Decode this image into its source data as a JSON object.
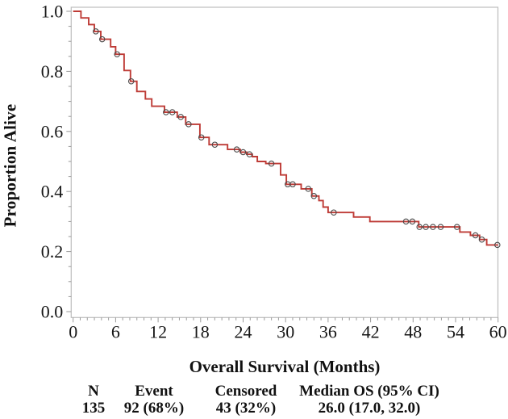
{
  "figure": {
    "background": "#ffffff"
  },
  "chart_data": {
    "type": "line",
    "variant": "kaplan_meier_step_curve",
    "title": "",
    "xlabel": "Overall Survival (Months)",
    "ylabel": "Proportion Alive",
    "xlim": [
      0,
      60
    ],
    "ylim": [
      0.0,
      1.0
    ],
    "x_major_ticks": [
      0,
      6,
      12,
      18,
      24,
      30,
      36,
      42,
      48,
      54,
      60
    ],
    "x_minor_tick_step": 1,
    "y_major_ticks": [
      0.0,
      0.2,
      0.4,
      0.6,
      0.8,
      1.0
    ],
    "y_minor_tick_step": 0.05,
    "grid": "off",
    "legend": "none",
    "frame": "box",
    "line_color": "#be3b36",
    "censor_marker": "open_circle",
    "censor_color": "#4a4a4a",
    "series": [
      {
        "name": "Overall Survival",
        "draw": "step_post",
        "points": [
          [
            0.0,
            1.0
          ],
          [
            1.1,
            0.978
          ],
          [
            2.2,
            0.956
          ],
          [
            3.0,
            0.933
          ],
          [
            3.9,
            0.907
          ],
          [
            5.3,
            0.882
          ],
          [
            6.0,
            0.857
          ],
          [
            7.2,
            0.803
          ],
          [
            8.1,
            0.767
          ],
          [
            9.0,
            0.733
          ],
          [
            10.2,
            0.708
          ],
          [
            11.1,
            0.684
          ],
          [
            12.9,
            0.664
          ],
          [
            14.7,
            0.648
          ],
          [
            15.9,
            0.624
          ],
          [
            17.9,
            0.58
          ],
          [
            19.2,
            0.556
          ],
          [
            21.8,
            0.54
          ],
          [
            23.6,
            0.531
          ],
          [
            24.5,
            0.524
          ],
          [
            25.3,
            0.516
          ],
          [
            26.0,
            0.5
          ],
          [
            27.2,
            0.493
          ],
          [
            29.3,
            0.455
          ],
          [
            30.1,
            0.424
          ],
          [
            32.2,
            0.409
          ],
          [
            33.7,
            0.385
          ],
          [
            34.7,
            0.37
          ],
          [
            35.3,
            0.348
          ],
          [
            36.0,
            0.33
          ],
          [
            39.6,
            0.315
          ],
          [
            41.9,
            0.3
          ],
          [
            48.8,
            0.282
          ],
          [
            54.6,
            0.265
          ],
          [
            56.1,
            0.254
          ],
          [
            57.4,
            0.24
          ],
          [
            58.4,
            0.222
          ],
          [
            60.0,
            0.222
          ]
        ]
      }
    ],
    "censored_points": [
      [
        3.2,
        0.933
      ],
      [
        4.1,
        0.907
      ],
      [
        6.2,
        0.857
      ],
      [
        8.2,
        0.767
      ],
      [
        13.1,
        0.664
      ],
      [
        14.0,
        0.664
      ],
      [
        15.2,
        0.648
      ],
      [
        16.3,
        0.624
      ],
      [
        18.1,
        0.58
      ],
      [
        20.0,
        0.556
      ],
      [
        23.1,
        0.54
      ],
      [
        24.0,
        0.531
      ],
      [
        24.9,
        0.524
      ],
      [
        28.0,
        0.493
      ],
      [
        30.3,
        0.424
      ],
      [
        31.0,
        0.424
      ],
      [
        33.2,
        0.409
      ],
      [
        34.0,
        0.385
      ],
      [
        36.8,
        0.33
      ],
      [
        47.0,
        0.3
      ],
      [
        47.9,
        0.3
      ],
      [
        48.9,
        0.282
      ],
      [
        49.8,
        0.282
      ],
      [
        50.8,
        0.282
      ],
      [
        51.9,
        0.282
      ],
      [
        54.2,
        0.282
      ],
      [
        56.8,
        0.254
      ],
      [
        57.7,
        0.24
      ],
      [
        59.9,
        0.222
      ]
    ]
  },
  "summary_table": {
    "columns": [
      {
        "header": "N",
        "value": "135"
      },
      {
        "header": "Event",
        "value": "92 (68%)"
      },
      {
        "header": "Censored",
        "value": "43 (32%)"
      },
      {
        "header": "Median OS (95% CI)",
        "value": "26.0 (17.0, 32.0)"
      }
    ]
  }
}
